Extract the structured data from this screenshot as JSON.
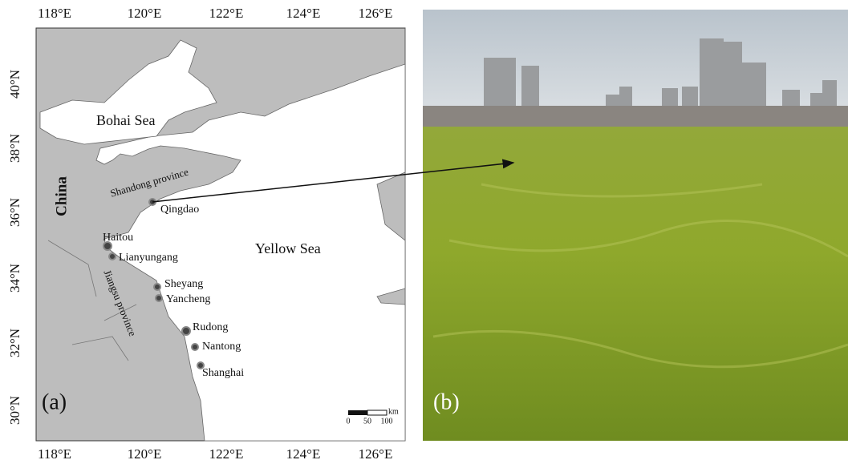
{
  "map": {
    "longitude_labels": [
      "118°E",
      "120°E",
      "122°E",
      "124°E",
      "126°E"
    ],
    "latitude_labels": [
      "40°N",
      "38°N",
      "36°N",
      "34°N",
      "32°N",
      "30°N"
    ],
    "regions": [
      "Bohai Sea",
      "China",
      "Shandong province",
      "Yellow Sea",
      "Jiangsu province"
    ],
    "places": [
      "Qingdao",
      "Haitou",
      "Lianyungang",
      "Sheyang",
      "Yancheng",
      "Rudong",
      "Nantong",
      "Shanghai"
    ],
    "panel_label": "(a)",
    "scale_bar": {
      "ticks": [
        0,
        50,
        100
      ],
      "unit": "km"
    }
  },
  "photo": {
    "panel_label": "(b)"
  }
}
